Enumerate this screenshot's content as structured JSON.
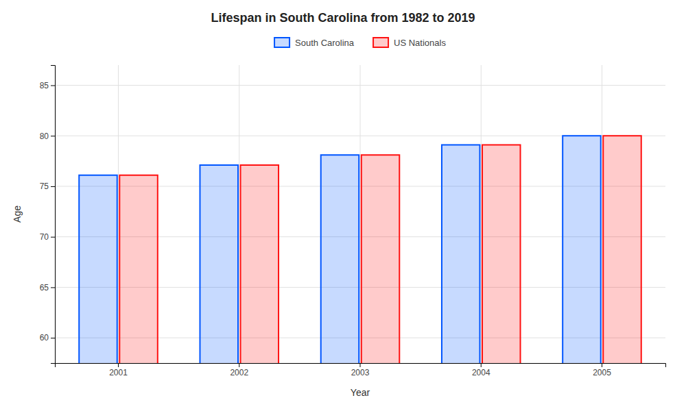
{
  "chart_data": {
    "type": "bar",
    "title": "Lifespan in South Carolina from 1982 to 2019",
    "xlabel": "Year",
    "ylabel": "Age",
    "categories": [
      "2001",
      "2002",
      "2003",
      "2004",
      "2005"
    ],
    "series": [
      {
        "name": "South Carolina",
        "color": "#0055ff",
        "values": [
          76.1,
          77.1,
          78.1,
          79.1,
          80.0
        ]
      },
      {
        "name": "US Nationals",
        "color": "#ff1111",
        "values": [
          76.1,
          77.1,
          78.1,
          79.1,
          80.0
        ]
      }
    ],
    "ylim": [
      57.5,
      87
    ],
    "yticks": [
      60,
      65,
      70,
      75,
      80,
      85
    ],
    "grid": true,
    "legend": "top"
  }
}
